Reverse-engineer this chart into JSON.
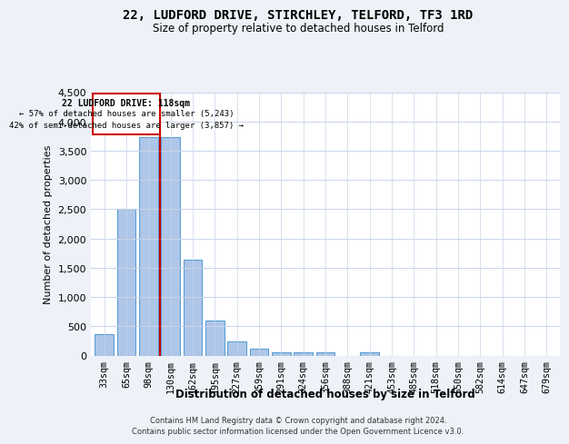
{
  "title": "22, LUDFORD DRIVE, STIRCHLEY, TELFORD, TF3 1RD",
  "subtitle": "Size of property relative to detached houses in Telford",
  "xlabel": "Distribution of detached houses by size in Telford",
  "ylabel": "Number of detached properties",
  "categories": [
    "33sqm",
    "65sqm",
    "98sqm",
    "130sqm",
    "162sqm",
    "195sqm",
    "227sqm",
    "259sqm",
    "291sqm",
    "324sqm",
    "356sqm",
    "388sqm",
    "421sqm",
    "453sqm",
    "485sqm",
    "518sqm",
    "550sqm",
    "582sqm",
    "614sqm",
    "647sqm",
    "679sqm"
  ],
  "values": [
    370,
    2510,
    3730,
    3730,
    1640,
    600,
    240,
    110,
    60,
    50,
    60,
    0,
    60,
    0,
    0,
    0,
    0,
    0,
    0,
    0,
    0
  ],
  "bar_color": "#aec6e8",
  "bar_edge_color": "#5a9fd4",
  "highlight_index": 3,
  "highlight_color": "#cc0000",
  "annotation_title": "22 LUDFORD DRIVE: 118sqm",
  "annotation_line1": "← 57% of detached houses are smaller (5,243)",
  "annotation_line2": "42% of semi-detached houses are larger (3,857) →",
  "ylim": [
    0,
    4500
  ],
  "yticks": [
    0,
    500,
    1000,
    1500,
    2000,
    2500,
    3000,
    3500,
    4000,
    4500
  ],
  "footer_line1": "Contains HM Land Registry data © Crown copyright and database right 2024.",
  "footer_line2": "Contains public sector information licensed under the Open Government Licence v3.0.",
  "bg_color": "#eef2f8",
  "plot_bg_color": "#ffffff",
  "grid_color": "#c8d4e8"
}
